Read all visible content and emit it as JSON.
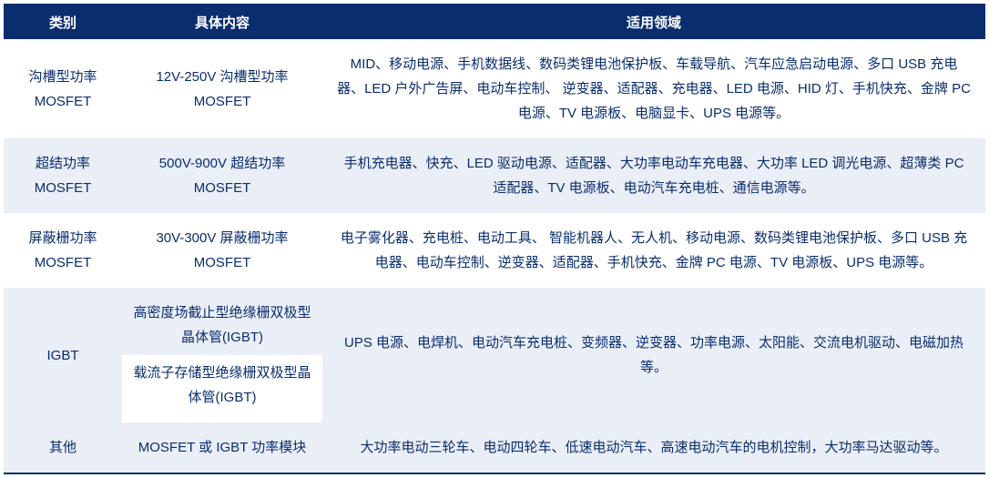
{
  "table": {
    "type": "table",
    "header_bg": "#0a2d6e",
    "header_fg": "#ffffff",
    "text_color": "#0a2d6e",
    "row_even_bg": "#eaeef6",
    "row_odd_bg": "#ffffff",
    "border_color": "#0a2d6e",
    "columns": {
      "category": "类别",
      "content": "具体内容",
      "domain": "适用领域"
    },
    "rows": [
      {
        "category": "沟槽型功率MOSFET",
        "content": "12V-250V 沟槽型功率MOSFET",
        "domain": "MID、移动电源、手机数据线、数码类锂电池保护板、车载导航、汽车应急启动电源、多口 USB 充电器、LED 户外广告屏、电动车控制、 逆变器、适配器、充电器、LED 电源、HID 灯、手机快充、金牌 PC 电源、TV 电源板、电脑显卡、UPS 电源等。"
      },
      {
        "category": "超结功率MOSFET",
        "content": "500V-900V 超结功率MOSFET",
        "domain": "手机充电器、快充、LED 驱动电源、适配器、大功率电动车充电器、大功率 LED 调光电源、超薄类 PC 适配器、TV 电源板、电动汽车充电桩、通信电源等。"
      },
      {
        "category": "屏蔽栅功率MOSFET",
        "content": "30V-300V 屏蔽栅功率MOSFET",
        "domain": "电子雾化器、充电桩、电动工具、 智能机器人、无人机、移动电源、数码类锂电池保护板、多口 USB 充电器、电动车控制、逆变器、适配器、手机快充、金牌 PC 电源、TV 电源板、UPS 电源等。"
      },
      {
        "category": "IGBT",
        "content_a": "高密度场截止型绝缘栅双极型晶体管(IGBT)",
        "content_b": "载流子存储型绝缘栅双极型晶体管(IGBT)",
        "domain": "UPS 电源、电焊机、电动汽车充电桩、变频器、逆变器、功率电源、太阳能、交流电机驱动、电磁加热等。"
      },
      {
        "category": "其他",
        "content": "MOSFET 或 IGBT 功率模块",
        "domain": "大功率电动三轮车、电动四轮车、低速电动汽车、高速电动汽车的电机控制，大功率马达驱动等。"
      }
    ]
  }
}
